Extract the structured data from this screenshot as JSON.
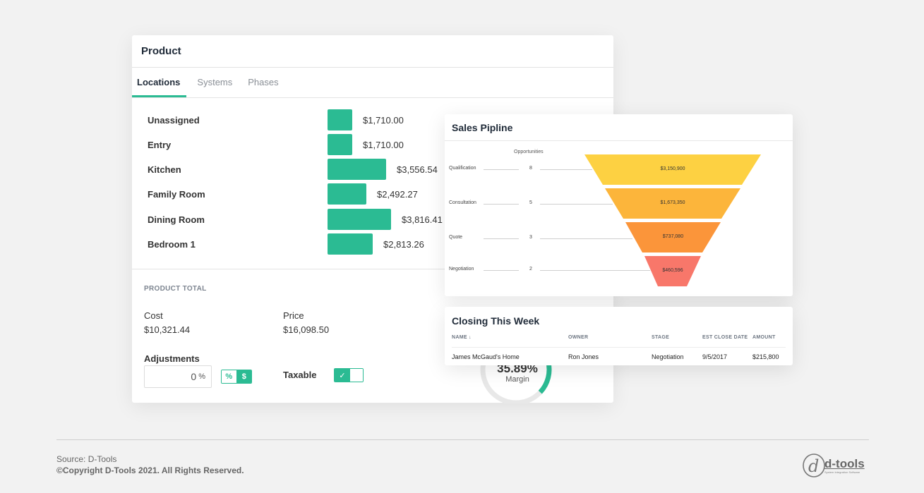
{
  "product": {
    "title": "Product",
    "tabs": [
      {
        "label": "Locations",
        "active": true
      },
      {
        "label": "Systems",
        "active": false
      },
      {
        "label": "Phases",
        "active": false
      }
    ],
    "locations": [
      {
        "name": "Unassigned",
        "value": "$1,710.00",
        "amount": 1710.0
      },
      {
        "name": "Entry",
        "value": "$1,710.00",
        "amount": 1710.0
      },
      {
        "name": "Kitchen",
        "value": "$3,556.54",
        "amount": 3556.54
      },
      {
        "name": "Family Room",
        "value": "$2,492.27",
        "amount": 2492.27
      },
      {
        "name": "Dining Room",
        "value": "$3,816.41",
        "amount": 3816.41
      },
      {
        "name": "Bedroom 1",
        "value": "$2,813.26",
        "amount": 2813.26
      }
    ],
    "total_label": "PRODUCT TOTAL",
    "cost_label": "Cost",
    "cost_value": "$10,321.44",
    "price_label": "Price",
    "price_value": "$16,098.50",
    "adjustments_label": "Adjustments",
    "adjustment_value": "0",
    "adjustment_unit": "%",
    "toggle_pct": "%",
    "toggle_usd": "$",
    "taxable_label": "Taxable",
    "taxable_check": "✓",
    "margin_value": "35.89%",
    "margin_fraction": 0.3589,
    "margin_label": "Margin",
    "accent_color": "#2bbb93"
  },
  "pipeline": {
    "title": "Sales Pipline",
    "opp_header": "Opportunities",
    "stages": [
      {
        "name": "Qualification",
        "count": "8",
        "amount": "$3,150,900",
        "color": "#fdd142"
      },
      {
        "name": "Consultation",
        "count": "5",
        "amount": "$1,673,350",
        "color": "#fcb53b"
      },
      {
        "name": "Quote",
        "count": "3",
        "amount": "$737,080",
        "color": "#fb953a"
      },
      {
        "name": "Negotiation",
        "count": "2",
        "amount": "$460,596",
        "color": "#f8776a"
      }
    ]
  },
  "closing": {
    "title": "Closing This Week",
    "headers": [
      "NAME ↓",
      "OWNER",
      "STAGE",
      "EST CLOSE DATE",
      "AMOUNT"
    ],
    "rows": [
      [
        "James McGaud's Home",
        "Ron Jones",
        "Negotiation",
        "9/5/2017",
        "$215,800"
      ]
    ]
  },
  "footer": {
    "source": "Source: D-Tools",
    "copyright": "©Copyright D-Tools 2021. All Rights Reserved.",
    "logo_mark": "d",
    "logo_text": "d-tools",
    "logo_tagline": "System Integration Software"
  }
}
